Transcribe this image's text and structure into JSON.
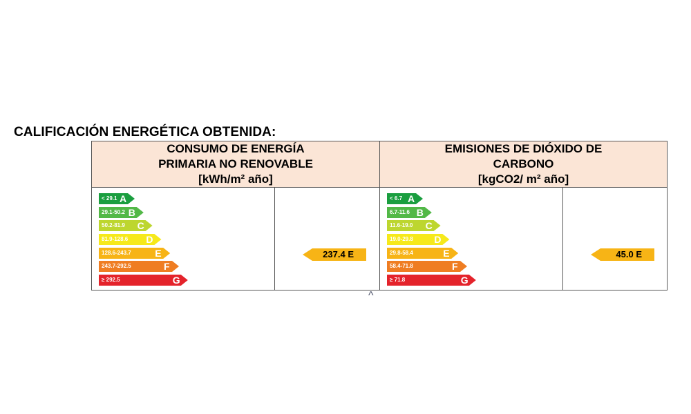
{
  "title": "CALIFICACIÓN ENERGÉTICA OBTENIDA:",
  "colors": {
    "header_bg": "#fbe5d6",
    "A": "#1a9e3f",
    "B": "#52b847",
    "C": "#bdd62f",
    "D": "#f6e91b",
    "E": "#f7b416",
    "F": "#ef7d22",
    "G": "#e4232b"
  },
  "panels": [
    {
      "header": [
        "CONSUMO DE ENERGÍA",
        "PRIMARIA NO RENOVABLE",
        "[kWh/m² año]"
      ],
      "scale": [
        {
          "range": "< 29.1",
          "letter": "A"
        },
        {
          "range": "29.1-50.2",
          "letter": "B"
        },
        {
          "range": "50.2-81.9",
          "letter": "C"
        },
        {
          "range": "81.9-128.6",
          "letter": "D"
        },
        {
          "range": "128.6-243.7",
          "letter": "E"
        },
        {
          "range": "243.7-292.5",
          "letter": "F"
        },
        {
          "range": "≥ 292.5",
          "letter": "G"
        }
      ],
      "result": {
        "value": "237.4",
        "letter": "E",
        "label": "237.4 E"
      }
    },
    {
      "header": [
        "EMISIONES DE DIÓXIDO DE",
        "CARBONO",
        "[kgCO2/ m² año]"
      ],
      "scale": [
        {
          "range": "< 6.7",
          "letter": "A"
        },
        {
          "range": "6.7-11.6",
          "letter": "B"
        },
        {
          "range": "11.6-19.0",
          "letter": "C"
        },
        {
          "range": "19.0-29.8",
          "letter": "D"
        },
        {
          "range": "29.8-58.4",
          "letter": "E"
        },
        {
          "range": "58.4-71.8",
          "letter": "F"
        },
        {
          "range": "≥ 71.8",
          "letter": "G"
        }
      ],
      "result": {
        "value": "45.0",
        "letter": "E",
        "label": "45.0 E"
      }
    }
  ],
  "caret_glyph": "^"
}
